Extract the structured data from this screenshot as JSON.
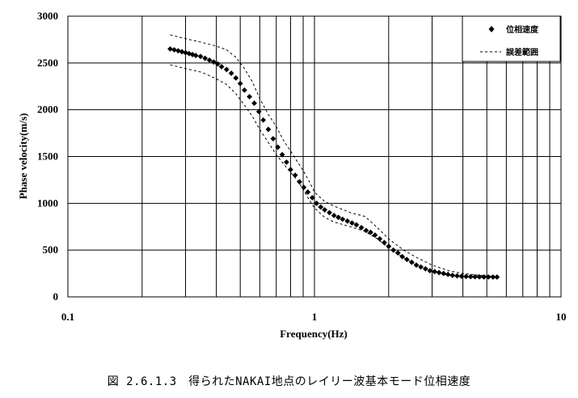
{
  "caption": "図 2.6.1.3　得られたNAKAI地点のレイリー波基本モード位相速度",
  "chart_data": {
    "type": "scatter",
    "xlabel": "Frequency(Hz)",
    "ylabel": "Phase velocity(m/s)",
    "x_scale": "log",
    "xlim": [
      0.1,
      10
    ],
    "ylim": [
      0,
      3000
    ],
    "x_ticks": [
      "0.1",
      "1",
      "10"
    ],
    "y_ticks": [
      "0",
      "500",
      "1000",
      "1500",
      "2000",
      "2500",
      "3000"
    ],
    "grid": true,
    "legend_position": "top-right",
    "legend": {
      "points_label": "位相速度",
      "dashed_label": "誤差範囲"
    },
    "series": [
      {
        "name": "位相速度",
        "style": "diamond-markers",
        "color": "#000000",
        "x": [
          0.26,
          0.27,
          0.28,
          0.29,
          0.3,
          0.31,
          0.32,
          0.33,
          0.345,
          0.36,
          0.375,
          0.39,
          0.405,
          0.42,
          0.44,
          0.46,
          0.48,
          0.5,
          0.52,
          0.545,
          0.57,
          0.595,
          0.62,
          0.65,
          0.68,
          0.71,
          0.74,
          0.77,
          0.8,
          0.835,
          0.87,
          0.905,
          0.94,
          0.98,
          1.02,
          1.06,
          1.1,
          1.15,
          1.2,
          1.25,
          1.3,
          1.36,
          1.42,
          1.48,
          1.55,
          1.62,
          1.69,
          1.76,
          1.84,
          1.92,
          2.0,
          2.09,
          2.18,
          2.27,
          2.37,
          2.48,
          2.59,
          2.7,
          2.82,
          2.94,
          3.07,
          3.2,
          3.34,
          3.48,
          3.63,
          3.79,
          3.95,
          4.12,
          4.3,
          4.48,
          4.67,
          4.87,
          5.08,
          5.3,
          5.5
        ],
        "values": [
          2650,
          2640,
          2630,
          2620,
          2610,
          2600,
          2590,
          2580,
          2570,
          2550,
          2530,
          2510,
          2490,
          2460,
          2430,
          2390,
          2340,
          2280,
          2210,
          2140,
          2070,
          1980,
          1890,
          1790,
          1690,
          1600,
          1520,
          1440,
          1360,
          1300,
          1230,
          1170,
          1120,
          1060,
          1000,
          960,
          930,
          900,
          870,
          850,
          830,
          810,
          790,
          770,
          740,
          710,
          690,
          660,
          620,
          580,
          540,
          500,
          470,
          430,
          400,
          370,
          340,
          320,
          300,
          280,
          270,
          260,
          250,
          240,
          230,
          225,
          220,
          218,
          216,
          215,
          214,
          213,
          213,
          212,
          212
        ]
      },
      {
        "name": "誤差範囲",
        "style": "dashed-line",
        "color": "#000000",
        "x": [
          0.26,
          0.3,
          0.35,
          0.4,
          0.44,
          0.48,
          0.52,
          0.56,
          0.6,
          0.65,
          0.7,
          0.75,
          0.8,
          0.85,
          0.9,
          0.95,
          1.0,
          1.1,
          1.2,
          1.4,
          1.6,
          1.8,
          2.0,
          2.3,
          2.6,
          3.0,
          3.5,
          4.0,
          4.5,
          5.0,
          5.5
        ],
        "values": [
          2800,
          2760,
          2720,
          2680,
          2640,
          2560,
          2440,
          2300,
          2120,
          1950,
          1820,
          1670,
          1560,
          1450,
          1350,
          1240,
          1120,
          1020,
          970,
          900,
          860,
          740,
          620,
          500,
          420,
          340,
          280,
          250,
          235,
          225,
          220
        ]
      },
      {
        "name": "誤差範囲",
        "style": "dashed-line",
        "color": "#000000",
        "x": [
          0.26,
          0.3,
          0.35,
          0.4,
          0.44,
          0.48,
          0.52,
          0.56,
          0.6,
          0.65,
          0.7,
          0.75,
          0.8,
          0.85,
          0.9,
          0.95,
          1.0,
          1.1,
          1.2,
          1.4,
          1.6,
          1.8,
          2.0,
          2.3,
          2.6,
          3.0,
          3.5,
          4.0,
          4.5,
          5.0,
          5.5
        ],
        "values": [
          2480,
          2440,
          2400,
          2330,
          2270,
          2170,
          2050,
          1930,
          1790,
          1650,
          1520,
          1420,
          1330,
          1250,
          1150,
          1040,
          950,
          850,
          800,
          750,
          700,
          620,
          520,
          420,
          340,
          270,
          230,
          215,
          205,
          200,
          200
        ]
      }
    ]
  }
}
